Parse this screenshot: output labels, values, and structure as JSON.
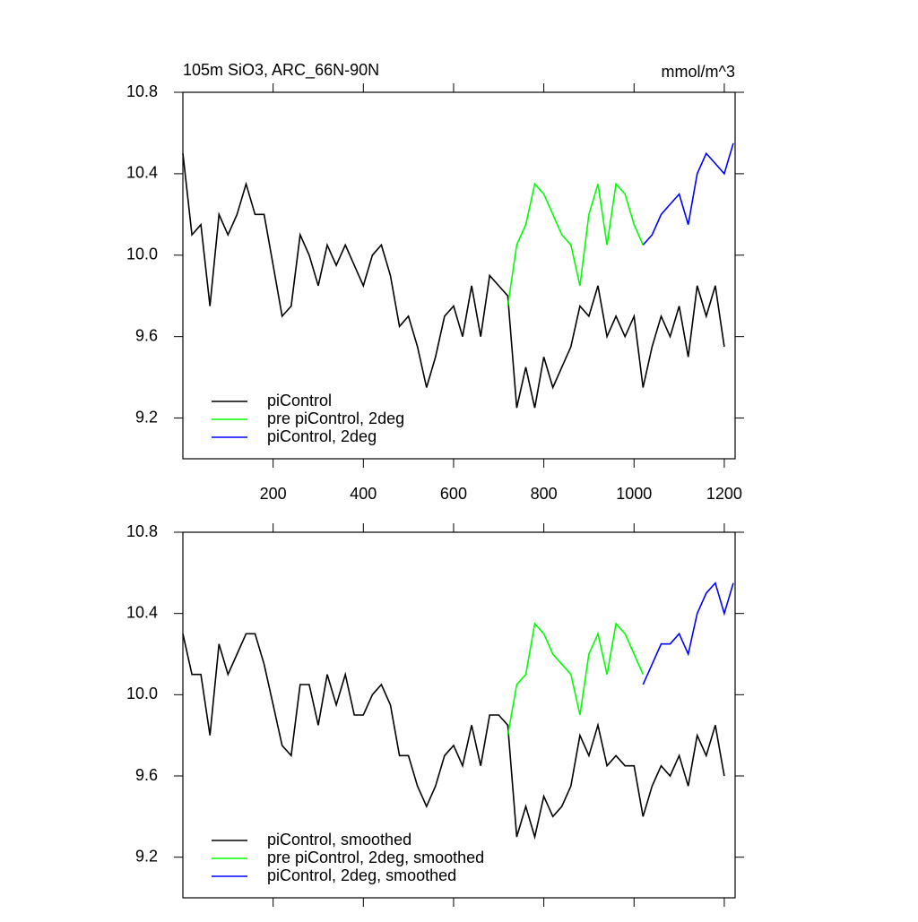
{
  "chart_data": [
    {
      "type": "line",
      "title": "105m SiO3, ARC_66N-90N",
      "subtitle": "mmol/m^3",
      "xlim": [
        0,
        1224
      ],
      "xticks": [
        200,
        400,
        600,
        800,
        1000,
        1200
      ],
      "show_xtick_labels": true,
      "ylim": [
        9.0,
        10.8
      ],
      "yticks": [
        {
          "value": 9.2,
          "label": "9.2"
        },
        {
          "value": 9.6,
          "label": "9.6"
        },
        {
          "value": 10.0,
          "label": "10.0"
        },
        {
          "value": 10.4,
          "label": "10.4"
        },
        {
          "value": 10.8,
          "label": "10.8"
        }
      ],
      "legend": "lower left",
      "series": [
        {
          "name": "piControl",
          "color": "#000000",
          "x": [
            0,
            20,
            40,
            60,
            80,
            100,
            120,
            140,
            160,
            180,
            200,
            220,
            240,
            260,
            280,
            300,
            320,
            340,
            360,
            380,
            400,
            420,
            440,
            460,
            480,
            500,
            520,
            540,
            560,
            580,
            600,
            620,
            640,
            660,
            680,
            700,
            720,
            740,
            760,
            780,
            800,
            820,
            840,
            860,
            880,
            900,
            920,
            940,
            960,
            980,
            1000,
            1020,
            1040,
            1060,
            1080,
            1100,
            1120,
            1140,
            1160,
            1180,
            1200
          ],
          "values": [
            10.5,
            10.1,
            10.15,
            9.75,
            10.2,
            10.1,
            10.2,
            10.35,
            10.2,
            10.2,
            9.95,
            9.7,
            9.75,
            10.1,
            10.0,
            9.85,
            10.05,
            9.95,
            10.05,
            9.95,
            9.85,
            10.0,
            10.05,
            9.9,
            9.65,
            9.7,
            9.55,
            9.35,
            9.5,
            9.7,
            9.75,
            9.6,
            9.85,
            9.6,
            9.9,
            9.85,
            9.8,
            9.25,
            9.45,
            9.25,
            9.5,
            9.35,
            9.45,
            9.55,
            9.75,
            9.7,
            9.85,
            9.6,
            9.7,
            9.6,
            9.7,
            9.35,
            9.55,
            9.7,
            9.6,
            9.75,
            9.5,
            9.85,
            9.7,
            9.85,
            9.55
          ]
        },
        {
          "name": "pre piControl, 2deg",
          "color": "#00ff00",
          "x": [
            720,
            740,
            760,
            780,
            800,
            820,
            840,
            860,
            880,
            900,
            920,
            940,
            960,
            980,
            1000,
            1020
          ],
          "values": [
            9.75,
            10.05,
            10.15,
            10.35,
            10.3,
            10.2,
            10.1,
            10.05,
            9.85,
            10.2,
            10.35,
            10.05,
            10.35,
            10.3,
            10.15,
            10.05
          ]
        },
        {
          "name": "piControl, 2deg",
          "color": "#0000ff",
          "x": [
            1020,
            1040,
            1060,
            1080,
            1100,
            1120,
            1140,
            1160,
            1180,
            1200,
            1220
          ],
          "values": [
            10.05,
            10.1,
            10.2,
            10.25,
            10.3,
            10.15,
            10.4,
            10.5,
            10.45,
            10.4,
            10.55
          ]
        }
      ]
    },
    {
      "type": "line",
      "xlim": [
        0,
        1224
      ],
      "xticks": [
        200,
        400,
        600,
        800,
        1000,
        1200
      ],
      "show_xtick_labels": false,
      "ylim": [
        9.0,
        10.8
      ],
      "yticks": [
        {
          "value": 9.2,
          "label": "9.2"
        },
        {
          "value": 9.6,
          "label": "9.6"
        },
        {
          "value": 10.0,
          "label": "10.0"
        },
        {
          "value": 10.4,
          "label": "10.4"
        },
        {
          "value": 10.8,
          "label": "10.8"
        }
      ],
      "legend": "lower left",
      "series": [
        {
          "name": "piControl, smoothed",
          "color": "#000000",
          "x": [
            0,
            20,
            40,
            60,
            80,
            100,
            120,
            140,
            160,
            180,
            200,
            220,
            240,
            260,
            280,
            300,
            320,
            340,
            360,
            380,
            400,
            420,
            440,
            460,
            480,
            500,
            520,
            540,
            560,
            580,
            600,
            620,
            640,
            660,
            680,
            700,
            720,
            740,
            760,
            780,
            800,
            820,
            840,
            860,
            880,
            900,
            920,
            940,
            960,
            980,
            1000,
            1020,
            1040,
            1060,
            1080,
            1100,
            1120,
            1140,
            1160,
            1180,
            1200
          ],
          "values": [
            10.3,
            10.1,
            10.1,
            9.8,
            10.25,
            10.1,
            10.2,
            10.3,
            10.3,
            10.15,
            9.95,
            9.75,
            9.7,
            10.05,
            10.05,
            9.85,
            10.1,
            9.95,
            10.1,
            9.9,
            9.9,
            10.0,
            10.05,
            9.95,
            9.7,
            9.7,
            9.55,
            9.45,
            9.55,
            9.7,
            9.75,
            9.65,
            9.85,
            9.65,
            9.9,
            9.9,
            9.85,
            9.3,
            9.45,
            9.3,
            9.5,
            9.4,
            9.45,
            9.55,
            9.8,
            9.7,
            9.85,
            9.65,
            9.7,
            9.65,
            9.65,
            9.4,
            9.55,
            9.65,
            9.6,
            9.7,
            9.55,
            9.8,
            9.7,
            9.85,
            9.6
          ]
        },
        {
          "name": "pre piControl, 2deg, smoothed",
          "color": "#00ff00",
          "x": [
            720,
            740,
            760,
            780,
            800,
            820,
            840,
            860,
            880,
            900,
            920,
            940,
            960,
            980,
            1000,
            1020
          ],
          "values": [
            9.8,
            10.05,
            10.1,
            10.35,
            10.3,
            10.2,
            10.15,
            10.1,
            9.9,
            10.2,
            10.3,
            10.1,
            10.35,
            10.3,
            10.2,
            10.1
          ]
        },
        {
          "name": "piControl, 2deg, smoothed",
          "color": "#0000ff",
          "x": [
            1020,
            1040,
            1060,
            1080,
            1100,
            1120,
            1140,
            1160,
            1180,
            1200,
            1220
          ],
          "values": [
            10.05,
            10.15,
            10.25,
            10.25,
            10.3,
            10.2,
            10.4,
            10.5,
            10.55,
            10.4,
            10.55
          ]
        }
      ]
    }
  ]
}
